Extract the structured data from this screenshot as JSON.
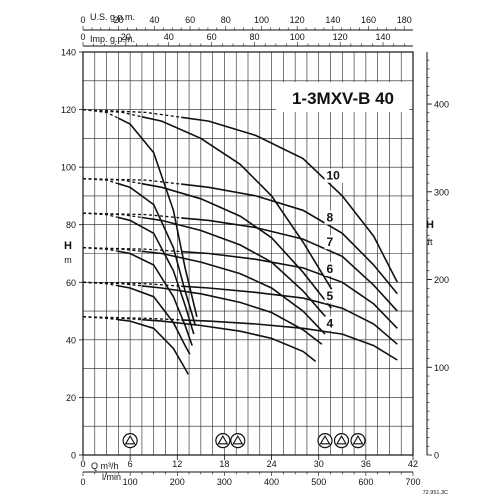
{
  "chart_data": {
    "type": "line",
    "title": "1-3MXV-B 40",
    "x_axes": {
      "bottom_m3h": {
        "label": "Q m³/h",
        "ticks": [
          "0",
          "6",
          "12",
          "18",
          "24",
          "30",
          "36",
          "42"
        ],
        "values": [
          0,
          6,
          12,
          18,
          24,
          30,
          36,
          42
        ]
      },
      "bottom_lmin": {
        "label": "l/min",
        "ticks": [
          "0",
          "100",
          "200",
          "300",
          "400",
          "500",
          "600",
          "700"
        ],
        "values": [
          0,
          100,
          200,
          300,
          400,
          500,
          600,
          700
        ]
      },
      "top_us_gpm": {
        "label": "U.S. g.p.m.",
        "ticks": [
          "0",
          "20",
          "40",
          "60",
          "80",
          "100",
          "120",
          "140",
          "160",
          "180"
        ],
        "values": [
          0,
          20,
          40,
          60,
          80,
          100,
          120,
          140,
          160,
          180
        ]
      },
      "top_imp_gpm": {
        "label": "Imp. g.p.m.",
        "ticks": [
          "0",
          "20",
          "40",
          "60",
          "80",
          "100",
          "120",
          "140"
        ],
        "values": [
          0,
          20,
          40,
          60,
          80,
          100,
          120,
          140
        ]
      }
    },
    "y_axes": {
      "left_m": {
        "label": "H",
        "unit": "m",
        "ticks": [
          "0",
          "20",
          "40",
          "60",
          "80",
          "100",
          "120",
          "140"
        ],
        "range": [
          0,
          140
        ]
      },
      "right_ft": {
        "label": "H",
        "unit": "ft",
        "ticks": [
          "0",
          "100",
          "200",
          "300",
          "400"
        ],
        "range": [
          0,
          459.3
        ]
      }
    },
    "xlim": [
      0,
      42
    ],
    "ylim": [
      0,
      140
    ],
    "grid": true,
    "series": [
      {
        "name": "4",
        "speeds": [
          [
            [
              0,
              48
            ],
            [
              3,
              47.5
            ],
            [
              6,
              46.5
            ],
            [
              9,
              44
            ],
            [
              11.5,
              37
            ],
            [
              13,
              30
            ],
            [
              13.4,
              28
            ]
          ],
          [
            [
              0,
              48
            ],
            [
              5,
              47.5
            ],
            [
              10,
              46.5
            ],
            [
              15,
              45
            ],
            [
              20,
              43
            ],
            [
              24,
              40.5
            ],
            [
              28,
              36
            ],
            [
              29.6,
              32.5
            ]
          ],
          [
            [
              0,
              48
            ],
            [
              8,
              47.5
            ],
            [
              16,
              46.5
            ],
            [
              22,
              45.5
            ],
            [
              28,
              44
            ],
            [
              33,
              42
            ],
            [
              37,
              38
            ],
            [
              40,
              33
            ]
          ]
        ]
      },
      {
        "name": "5",
        "speeds": [
          [
            [
              0,
              60
            ],
            [
              3,
              59.5
            ],
            [
              6,
              58
            ],
            [
              9,
              55
            ],
            [
              11.5,
              46
            ],
            [
              13,
              38
            ],
            [
              13.6,
              35
            ]
          ],
          [
            [
              0,
              60
            ],
            [
              5,
              59.5
            ],
            [
              10,
              58
            ],
            [
              15,
              56
            ],
            [
              20,
              53
            ],
            [
              24,
              49.5
            ],
            [
              28,
              43.5
            ],
            [
              30.4,
              38.5
            ]
          ],
          [
            [
              0,
              60
            ],
            [
              8,
              59.5
            ],
            [
              16,
              58
            ],
            [
              22,
              56.5
            ],
            [
              28,
              54.5
            ],
            [
              33,
              51
            ],
            [
              37,
              45.5
            ],
            [
              40,
              38.5
            ]
          ]
        ]
      },
      {
        "name": "6",
        "speeds": [
          [
            [
              0,
              72
            ],
            [
              3,
              71.5
            ],
            [
              6,
              70
            ],
            [
              9,
              66
            ],
            [
              11.5,
              55
            ],
            [
              13,
              45
            ],
            [
              13.9,
              38
            ]
          ],
          [
            [
              0,
              72
            ],
            [
              5,
              71.5
            ],
            [
              10,
              70
            ],
            [
              15,
              67
            ],
            [
              20,
              63
            ],
            [
              24,
              58
            ],
            [
              28,
              50
            ],
            [
              30.8,
              42
            ]
          ],
          [
            [
              0,
              72
            ],
            [
              8,
              71.5
            ],
            [
              16,
              70
            ],
            [
              22,
              68
            ],
            [
              28,
              65
            ],
            [
              33,
              60
            ],
            [
              37,
              52.5
            ],
            [
              40,
              44
            ]
          ]
        ]
      },
      {
        "name": "7",
        "speeds": [
          [
            [
              0,
              84
            ],
            [
              3,
              83.5
            ],
            [
              6,
              81.5
            ],
            [
              9,
              77
            ],
            [
              11.5,
              64
            ],
            [
              13,
              52
            ],
            [
              14.1,
              42
            ]
          ],
          [
            [
              0,
              84
            ],
            [
              5,
              83.5
            ],
            [
              10,
              81.5
            ],
            [
              15,
              78
            ],
            [
              20,
              73
            ],
            [
              24,
              67
            ],
            [
              28,
              57
            ],
            [
              31.2,
              47
            ]
          ],
          [
            [
              0,
              84
            ],
            [
              8,
              83.5
            ],
            [
              16,
              81.5
            ],
            [
              22,
              79
            ],
            [
              28,
              75
            ],
            [
              33,
              69
            ],
            [
              37,
              59
            ],
            [
              40,
              50
            ]
          ]
        ]
      },
      {
        "name": "8",
        "speeds": [
          [
            [
              0,
              96
            ],
            [
              3,
              95.5
            ],
            [
              6,
              93
            ],
            [
              9,
              87
            ],
            [
              11.5,
              72
            ],
            [
              13,
              57
            ],
            [
              14.3,
              45
            ]
          ],
          [
            [
              0,
              96
            ],
            [
              5,
              95.5
            ],
            [
              10,
              93
            ],
            [
              15,
              89
            ],
            [
              20,
              83
            ],
            [
              24,
              75.5
            ],
            [
              28,
              63.5
            ],
            [
              31.6,
              51
            ]
          ],
          [
            [
              0,
              96
            ],
            [
              8,
              95.5
            ],
            [
              16,
              93
            ],
            [
              22,
              90
            ],
            [
              28,
              85
            ],
            [
              33,
              77
            ],
            [
              37,
              66
            ],
            [
              40,
              56
            ]
          ]
        ]
      },
      {
        "name": "10",
        "speeds": [
          [
            [
              0,
              120
            ],
            [
              3,
              119
            ],
            [
              6,
              115
            ],
            [
              9,
              105
            ],
            [
              11.5,
              85
            ],
            [
              13,
              65
            ],
            [
              14.5,
              48
            ]
          ],
          [
            [
              0,
              120
            ],
            [
              5,
              119
            ],
            [
              10,
              116
            ],
            [
              15,
              110
            ],
            [
              20,
              101
            ],
            [
              24,
              90
            ],
            [
              28,
              74
            ],
            [
              32,
              56
            ]
          ],
          [
            [
              0,
              120
            ],
            [
              8,
              119
            ],
            [
              16,
              116
            ],
            [
              22,
              111
            ],
            [
              28,
              103
            ],
            [
              33,
              90
            ],
            [
              37,
              76
            ],
            [
              40,
              60
            ]
          ]
        ]
      }
    ],
    "dashed_segment_ends": [
      4.5,
      7.5,
      12.5
    ],
    "curve_labels": [
      "10",
      "8",
      "7",
      "6",
      "5",
      "4"
    ],
    "pole_symbols_per_speed": [
      1,
      2,
      3
    ],
    "footer_code": "72.951.3C"
  }
}
